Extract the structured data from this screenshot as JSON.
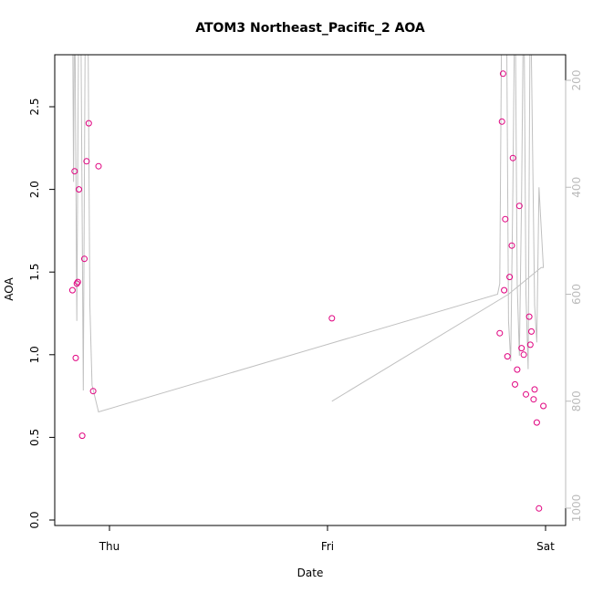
{
  "chart_data": {
    "type": "scatter",
    "title": "ATOM3 Northeast_Pacific_2 AOA",
    "xlabel": "Date",
    "ylabel": "AOA",
    "x_ticks": [
      "Thu",
      "Fri",
      "Sat"
    ],
    "ylim": [
      0,
      2.8
    ],
    "y_ticks": [
      "0.0",
      "0.5",
      "1.0",
      "1.5",
      "2.0",
      "2.5"
    ],
    "y2_ticks": [
      "200",
      "400",
      "600",
      "800",
      "1000"
    ],
    "y2lim_reversed": [
      1040,
      150
    ],
    "point_color": "#e0007f",
    "line_color": "#c0c0c0",
    "points": [
      {
        "x": -0.17,
        "y": 1.39
      },
      {
        "x": -0.16,
        "y": 2.11
      },
      {
        "x": -0.155,
        "y": 0.98
      },
      {
        "x": -0.15,
        "y": 1.43
      },
      {
        "x": -0.145,
        "y": 1.44
      },
      {
        "x": -0.14,
        "y": 2.0
      },
      {
        "x": -0.125,
        "y": 0.51
      },
      {
        "x": -0.115,
        "y": 1.58
      },
      {
        "x": -0.105,
        "y": 2.17
      },
      {
        "x": -0.095,
        "y": 2.4
      },
      {
        "x": -0.075,
        "y": 0.78
      },
      {
        "x": -0.05,
        "y": 2.14
      },
      {
        "x": 1.02,
        "y": 1.22
      },
      {
        "x": 1.79,
        "y": 1.13
      },
      {
        "x": 1.8,
        "y": 2.41
      },
      {
        "x": 1.805,
        "y": 2.7
      },
      {
        "x": 1.81,
        "y": 1.39
      },
      {
        "x": 1.815,
        "y": 1.82
      },
      {
        "x": 1.825,
        "y": 0.99
      },
      {
        "x": 1.835,
        "y": 1.47
      },
      {
        "x": 1.845,
        "y": 1.66
      },
      {
        "x": 1.85,
        "y": 2.19
      },
      {
        "x": 1.86,
        "y": 0.82
      },
      {
        "x": 1.87,
        "y": 0.91
      },
      {
        "x": 1.88,
        "y": 1.9
      },
      {
        "x": 1.89,
        "y": 1.04
      },
      {
        "x": 1.9,
        "y": 1.0
      },
      {
        "x": 1.91,
        "y": 0.76
      },
      {
        "x": 1.925,
        "y": 1.23
      },
      {
        "x": 1.93,
        "y": 1.06
      },
      {
        "x": 1.935,
        "y": 1.14
      },
      {
        "x": 1.945,
        "y": 0.73
      },
      {
        "x": 1.95,
        "y": 0.79
      },
      {
        "x": 1.96,
        "y": 0.59
      },
      {
        "x": 1.97,
        "y": 0.07
      },
      {
        "x": 1.99,
        "y": 0.69
      }
    ],
    "pressure_line": [
      {
        "x": -0.17,
        "p": 0
      },
      {
        "x": -0.165,
        "p": 390
      },
      {
        "x": -0.16,
        "p": 0
      },
      {
        "x": -0.15,
        "p": 650
      },
      {
        "x": -0.14,
        "p": 0
      },
      {
        "x": -0.13,
        "p": 150
      },
      {
        "x": -0.12,
        "p": 780
      },
      {
        "x": -0.11,
        "p": 0
      },
      {
        "x": -0.1,
        "p": 0
      },
      {
        "x": -0.09,
        "p": 620
      },
      {
        "x": -0.08,
        "p": 770
      },
      {
        "x": -0.05,
        "p": 820
      },
      {
        "x": 1.78,
        "p": 600
      },
      {
        "x": 1.79,
        "p": 580
      },
      {
        "x": 1.8,
        "p": 0
      },
      {
        "x": 1.81,
        "p": 150
      },
      {
        "x": 1.82,
        "p": 0
      },
      {
        "x": 1.83,
        "p": 650
      },
      {
        "x": 1.84,
        "p": 725
      },
      {
        "x": 1.85,
        "p": 400
      },
      {
        "x": 1.86,
        "p": 0
      },
      {
        "x": 1.87,
        "p": 580
      },
      {
        "x": 1.88,
        "p": 715
      },
      {
        "x": 1.89,
        "p": 420
      },
      {
        "x": 1.9,
        "p": 0
      },
      {
        "x": 1.91,
        "p": 600
      },
      {
        "x": 1.92,
        "p": 740
      },
      {
        "x": 1.93,
        "p": 0
      },
      {
        "x": 1.95,
        "p": 620
      },
      {
        "x": 1.96,
        "p": 690
      },
      {
        "x": 1.97,
        "p": 400
      },
      {
        "x": 1.99,
        "p": 550
      },
      {
        "x": 1.98,
        "p": 550
      },
      {
        "x": 1.83,
        "p": 600
      },
      {
        "x": 1.02,
        "p": 800
      }
    ]
  }
}
